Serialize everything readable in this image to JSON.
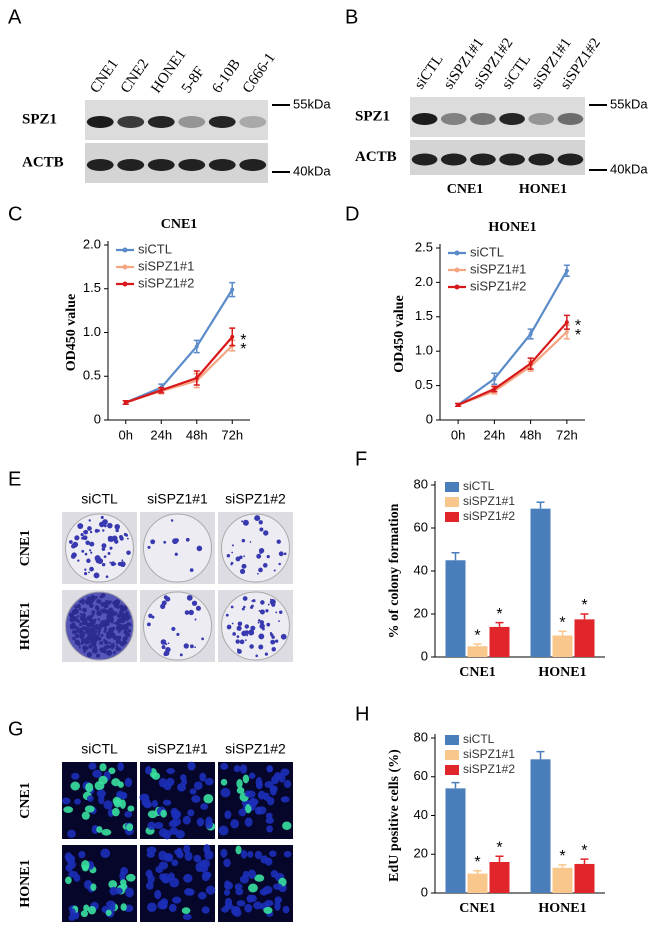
{
  "panel_a": {
    "letter": "A",
    "lanes": [
      "CNE1",
      "CNE2",
      "HONE1",
      "5-8F",
      "6-10B",
      "C666-1"
    ],
    "rows": [
      "SPZ1",
      "ACTB"
    ],
    "markers": [
      "55kDa",
      "40kDa"
    ]
  },
  "panel_b": {
    "letter": "B",
    "lanes": [
      "siCTL",
      "siSPZ1#1",
      "siSPZ1#2",
      "siCTL",
      "siSPZ1#1",
      "siSPZ1#2"
    ],
    "rows": [
      "SPZ1",
      "ACTB"
    ],
    "markers": [
      "55kDa",
      "40kDa"
    ],
    "groups": [
      "CNE1",
      "HONE1"
    ]
  },
  "panel_e": {
    "letter": "E",
    "columns": [
      "siCTL",
      "siSPZ1#1",
      "siSPZ1#2"
    ],
    "rows": [
      "CNE1",
      "HONE1"
    ]
  },
  "panel_g": {
    "letter": "G",
    "columns": [
      "siCTL",
      "siSPZ1#1",
      "siSPZ1#2"
    ],
    "rows": [
      "CNE1",
      "HONE1"
    ]
  },
  "chart_data": [
    {
      "type": "line",
      "panel_label": "C",
      "title": "CNE1",
      "ylabel": "OD450 value",
      "categories": [
        "0h",
        "24h",
        "48h",
        "72h"
      ],
      "ylim": [
        0,
        2
      ],
      "yticks": [
        0,
        0.5,
        {
          "value": 1,
          "label": "1.0"
        },
        1.5,
        {
          "value": 2,
          "label": "2.0"
        }
      ],
      "series": [
        {
          "name": "siCTL",
          "color": "#5b8bc9",
          "values": [
            0.2,
            0.37,
            0.84,
            1.49
          ],
          "errors": [
            0.02,
            0.04,
            0.07,
            0.08
          ]
        },
        {
          "name": "siSPZ1#1",
          "color": "#f4a582",
          "values": [
            0.2,
            0.33,
            0.45,
            0.85
          ],
          "errors": [
            0.02,
            0.03,
            0.08,
            0.06
          ]
        },
        {
          "name": "siSPZ1#2",
          "color": "#d7191c",
          "values": [
            0.2,
            0.34,
            0.48,
            0.95
          ],
          "errors": [
            0.02,
            0.03,
            0.08,
            0.1
          ]
        }
      ],
      "annotations": [
        "*",
        "*"
      ]
    },
    {
      "type": "line",
      "panel_label": "D",
      "title": "HONE1",
      "ylabel": "OD450 value",
      "categories": [
        "0h",
        "24h",
        "48h",
        "72h"
      ],
      "ylim": [
        0,
        2.5
      ],
      "yticks": [
        0,
        0.5,
        {
          "value": 1,
          "label": "1.0"
        },
        1.5,
        {
          "value": 2,
          "label": "2.0"
        },
        2.5
      ],
      "series": [
        {
          "name": "siCTL",
          "color": "#5b8bc9",
          "values": [
            0.22,
            0.6,
            1.25,
            2.17
          ],
          "errors": [
            0.02,
            0.08,
            0.07,
            0.08
          ]
        },
        {
          "name": "siSPZ1#1",
          "color": "#f4a582",
          "values": [
            0.22,
            0.42,
            0.78,
            1.28
          ],
          "errors": [
            0.02,
            0.04,
            0.07,
            0.1
          ]
        },
        {
          "name": "siSPZ1#2",
          "color": "#d7191c",
          "values": [
            0.22,
            0.45,
            0.82,
            1.42
          ],
          "errors": [
            0.02,
            0.04,
            0.08,
            0.1
          ]
        }
      ],
      "annotations": [
        "*",
        "*"
      ]
    },
    {
      "type": "bar",
      "panel_label": "F",
      "ylabel": "% of colony formation",
      "categories": [
        "CNE1",
        "HONE1"
      ],
      "ylim": [
        0,
        80
      ],
      "yticks": [
        0,
        20,
        40,
        60,
        80
      ],
      "series": [
        {
          "name": "siCTL",
          "color": "#4a7ebb",
          "values": [
            45,
            69
          ],
          "errors": [
            3.5,
            3
          ]
        },
        {
          "name": "siSPZ1#1",
          "color": "#f9c78b",
          "values": [
            5,
            10
          ],
          "errors": [
            1,
            2
          ],
          "annotations": [
            "*",
            "*"
          ]
        },
        {
          "name": "siSPZ1#2",
          "color": "#e0262b",
          "values": [
            14,
            17.5
          ],
          "errors": [
            2,
            2.5
          ],
          "annotations": [
            "*",
            "*"
          ]
        }
      ]
    },
    {
      "type": "bar",
      "panel_label": "H",
      "ylabel": "EdU positive cells (%)",
      "categories": [
        "CNE1",
        "HONE1"
      ],
      "ylim": [
        0,
        80
      ],
      "yticks": [
        0,
        20,
        40,
        60,
        80
      ],
      "series": [
        {
          "name": "siCTL",
          "color": "#4a7ebb",
          "values": [
            54,
            69
          ],
          "errors": [
            3,
            4
          ]
        },
        {
          "name": "siSPZ1#1",
          "color": "#f9c78b",
          "values": [
            10,
            13
          ],
          "errors": [
            1.5,
            1.5
          ],
          "annotations": [
            "*",
            "*"
          ]
        },
        {
          "name": "siSPZ1#2",
          "color": "#e0262b",
          "values": [
            16,
            15
          ],
          "errors": [
            3,
            2.5
          ],
          "annotations": [
            "*",
            "*"
          ]
        }
      ]
    }
  ]
}
